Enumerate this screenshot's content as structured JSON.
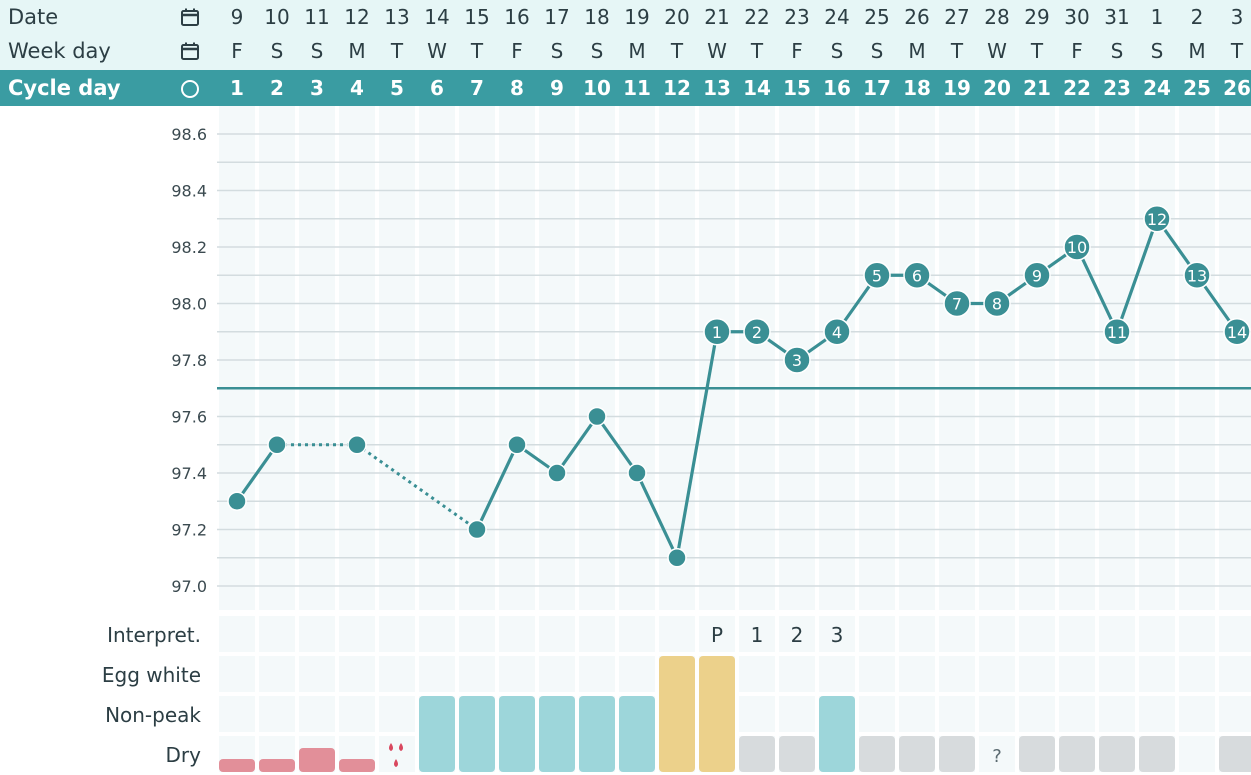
{
  "header": {
    "date_label": "Date",
    "weekday_label": "Week day",
    "cycleday_label": "Cycle day",
    "date_icon": "calendar-icon",
    "weekday_icon": "calendar-icon",
    "cycleday_icon": "circle-icon"
  },
  "days": {
    "dates": [
      "9",
      "10",
      "11",
      "12",
      "13",
      "14",
      "15",
      "16",
      "17",
      "18",
      "19",
      "20",
      "21",
      "22",
      "23",
      "24",
      "25",
      "26",
      "27",
      "28",
      "29",
      "30",
      "31",
      "1",
      "2",
      "3"
    ],
    "weekdays": [
      "F",
      "S",
      "S",
      "M",
      "T",
      "W",
      "T",
      "F",
      "S",
      "S",
      "M",
      "T",
      "W",
      "T",
      "F",
      "S",
      "S",
      "M",
      "T",
      "W",
      "T",
      "F",
      "S",
      "S",
      "M",
      "T"
    ],
    "cycle_days": [
      "1",
      "2",
      "3",
      "4",
      "5",
      "6",
      "7",
      "8",
      "9",
      "10",
      "11",
      "12",
      "13",
      "14",
      "15",
      "16",
      "17",
      "18",
      "19",
      "20",
      "21",
      "22",
      "23",
      "24",
      "25",
      "26"
    ]
  },
  "chart_data": {
    "type": "line",
    "x": [
      1,
      2,
      3,
      4,
      5,
      6,
      7,
      8,
      9,
      10,
      11,
      12,
      13,
      14,
      15,
      16,
      17,
      18,
      19,
      20,
      21,
      22,
      23,
      24,
      25,
      26
    ],
    "temperatures": [
      97.3,
      97.5,
      null,
      97.5,
      null,
      null,
      97.2,
      97.5,
      97.4,
      97.6,
      97.4,
      97.1,
      97.9,
      97.9,
      97.8,
      97.9,
      98.1,
      98.1,
      98.0,
      98.0,
      98.1,
      98.2,
      97.9,
      98.3,
      98.1,
      97.9
    ],
    "dotted_segments": [
      [
        2,
        4
      ],
      [
        4,
        7
      ]
    ],
    "point_numbers": [
      null,
      null,
      null,
      null,
      null,
      null,
      null,
      null,
      null,
      null,
      null,
      null,
      "1",
      "2",
      "3",
      "4",
      "5",
      "6",
      "7",
      "8",
      "9",
      "10",
      "11",
      "12",
      "13",
      "14"
    ],
    "y_ticks": [
      "98.6",
      "98.4",
      "98.2",
      "98.0",
      "97.8",
      "97.6",
      "97.4",
      "97.2",
      "97.0"
    ],
    "ylim": [
      96.96,
      98.62
    ],
    "coverline": 97.7,
    "colors": {
      "line": "#3a8f94",
      "point": "#3a8f94",
      "coverline": "#3a8f94",
      "grid": "#d3dcdf",
      "column_bg": "#f4f9fa"
    }
  },
  "observations": {
    "row_labels": [
      "Interpret.",
      "Egg white",
      "Non-peak",
      "Dry"
    ],
    "interpretation": [
      "",
      "",
      "",
      "",
      "",
      "",
      "",
      "",
      "",
      "",
      "",
      "",
      "P",
      "1",
      "2",
      "3",
      "",
      "",
      "",
      "",
      "",
      "",
      "",
      "",
      "",
      ""
    ],
    "mucus": [
      "bleed-light",
      "bleed-light",
      "bleed-medium",
      "bleed-light",
      "spotting",
      "non-peak",
      "non-peak",
      "non-peak",
      "non-peak",
      "non-peak",
      "non-peak",
      "egg-white",
      "egg-white",
      "dry",
      "dry",
      "non-peak",
      "dry",
      "dry",
      "dry",
      "unknown",
      "dry",
      "dry",
      "dry",
      "dry",
      "none",
      "dry"
    ],
    "unknown_symbol": "?",
    "colors": {
      "bleed": "#e28f99",
      "spot": "#d9485f",
      "non_peak": "#9dd6da",
      "egg_white": "#ecd18b",
      "dry": "#d7dbdd",
      "cell_bg": "#f4f9fa"
    }
  }
}
